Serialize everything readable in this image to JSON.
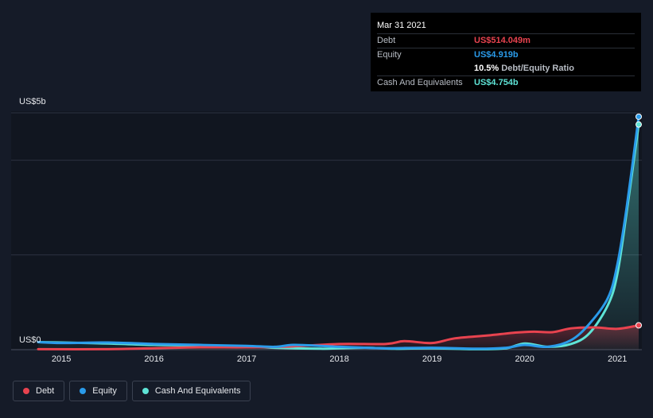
{
  "chart_data": {
    "type": "line",
    "ylabel_top": "US$5b",
    "ylabel_bottom": "US$0",
    "ylim": [
      0,
      5.0
    ],
    "xlim": [
      2014.75,
      2021.23
    ],
    "x_ticks": [
      "2015",
      "2016",
      "2017",
      "2018",
      "2019",
      "2020",
      "2021"
    ],
    "series": [
      {
        "name": "Debt",
        "color": "#e8434f",
        "points": [
          [
            2014.75,
            0.01
          ],
          [
            2015.5,
            0.01
          ],
          [
            2016.0,
            0.03
          ],
          [
            2016.5,
            0.05
          ],
          [
            2017.0,
            0.05
          ],
          [
            2017.5,
            0.07
          ],
          [
            2018.0,
            0.12
          ],
          [
            2018.5,
            0.12
          ],
          [
            2018.7,
            0.18
          ],
          [
            2019.0,
            0.14
          ],
          [
            2019.25,
            0.24
          ],
          [
            2019.6,
            0.3
          ],
          [
            2019.9,
            0.36
          ],
          [
            2020.1,
            0.38
          ],
          [
            2020.3,
            0.37
          ],
          [
            2020.5,
            0.45
          ],
          [
            2020.75,
            0.47
          ],
          [
            2021.0,
            0.44
          ],
          [
            2021.23,
            0.514
          ]
        ]
      },
      {
        "name": "Equity",
        "color": "#2a9bea",
        "points": [
          [
            2014.75,
            0.16
          ],
          [
            2015.0,
            0.14
          ],
          [
            2015.5,
            0.15
          ],
          [
            2016.0,
            0.12
          ],
          [
            2016.5,
            0.1
          ],
          [
            2017.0,
            0.08
          ],
          [
            2017.3,
            0.06
          ],
          [
            2017.5,
            0.1
          ],
          [
            2017.8,
            0.08
          ],
          [
            2018.0,
            0.06
          ],
          [
            2018.3,
            0.04
          ],
          [
            2018.5,
            0.03
          ],
          [
            2019.0,
            0.04
          ],
          [
            2019.5,
            0.02
          ],
          [
            2019.8,
            0.04
          ],
          [
            2020.0,
            0.1
          ],
          [
            2020.25,
            0.06
          ],
          [
            2020.5,
            0.2
          ],
          [
            2020.7,
            0.55
          ],
          [
            2020.9,
            1.1
          ],
          [
            2021.0,
            1.8
          ],
          [
            2021.1,
            3.0
          ],
          [
            2021.23,
            4.919
          ]
        ]
      },
      {
        "name": "Cash And Equivalents",
        "color": "#5ee3d6",
        "points": [
          [
            2014.75,
            0.16
          ],
          [
            2015.0,
            0.15
          ],
          [
            2015.5,
            0.13
          ],
          [
            2016.0,
            0.1
          ],
          [
            2016.5,
            0.09
          ],
          [
            2017.0,
            0.07
          ],
          [
            2017.3,
            0.04
          ],
          [
            2017.8,
            0.02
          ],
          [
            2018.0,
            0.03
          ],
          [
            2018.3,
            0.04
          ],
          [
            2018.6,
            0.02
          ],
          [
            2019.0,
            0.03
          ],
          [
            2019.5,
            0.01
          ],
          [
            2019.8,
            0.03
          ],
          [
            2020.0,
            0.13
          ],
          [
            2020.25,
            0.06
          ],
          [
            2020.5,
            0.12
          ],
          [
            2020.7,
            0.35
          ],
          [
            2020.9,
            0.95
          ],
          [
            2021.0,
            1.6
          ],
          [
            2021.1,
            2.9
          ],
          [
            2021.23,
            4.754
          ]
        ]
      }
    ]
  },
  "tooltip": {
    "date": "Mar 31 2021",
    "debt_label": "Debt",
    "debt_value": "US$514.049m",
    "equity_label": "Equity",
    "equity_value": "US$4.919b",
    "ratio_value": "10.5%",
    "ratio_label": "Debt/Equity Ratio",
    "cash_label": "Cash And Equivalents",
    "cash_value": "US$4.754b"
  },
  "legend": [
    {
      "label": "Debt",
      "color": "#e8434f"
    },
    {
      "label": "Equity",
      "color": "#2a9bea"
    },
    {
      "label": "Cash And Equivalents",
      "color": "#5ee3d6"
    }
  ]
}
